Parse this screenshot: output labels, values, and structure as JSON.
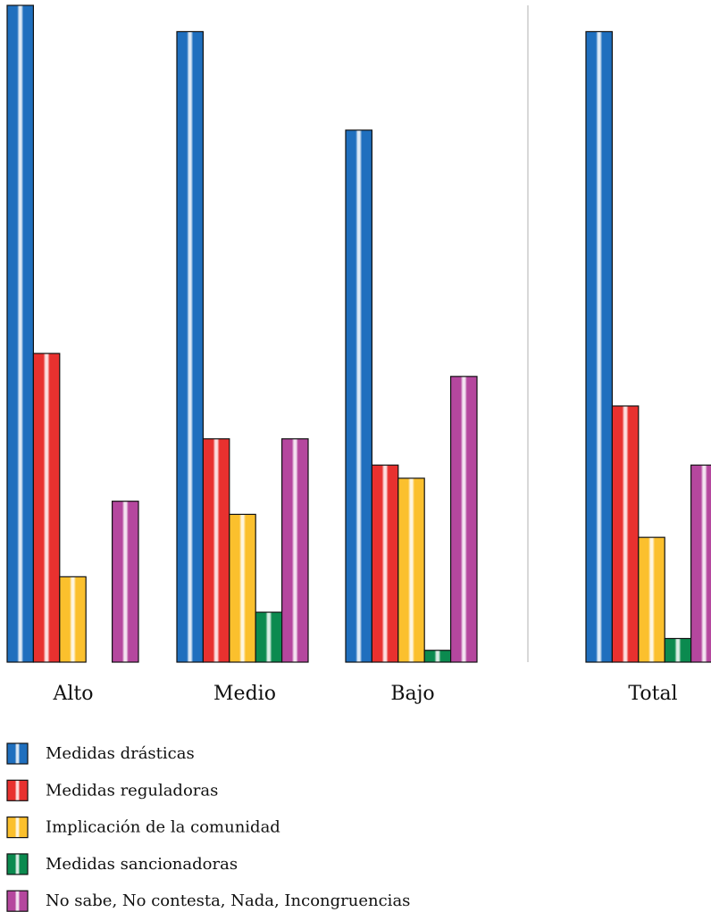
{
  "chart_data": {
    "type": "bar",
    "title": "",
    "xlabel": "",
    "ylabel": "",
    "ylim": [
      0,
      100
    ],
    "categories": [
      "Alto",
      "Medio",
      "Bajo",
      "Total"
    ],
    "series": [
      {
        "name": "Medidas drásticas",
        "color": "#1f6fbe",
        "values": [
          100,
          96,
          81,
          96
        ]
      },
      {
        "name": "Medidas reguladoras",
        "color": "#e8312f",
        "values": [
          47,
          34,
          30,
          39
        ]
      },
      {
        "name": "Implicación de la comunidad",
        "color": "#fbc02d",
        "values": [
          13,
          22.5,
          28,
          19
        ]
      },
      {
        "name": "Medidas sancionadoras",
        "color": "#0b8a4f",
        "values": [
          0,
          7.6,
          1.8,
          3.6
        ]
      },
      {
        "name": "No sabe, No contesta, Nada, Incongruencias",
        "color": "#b5479e",
        "values": [
          24.5,
          34,
          43.5,
          30
        ]
      }
    ],
    "legend_position": "bottom",
    "separator_before_last_group": true,
    "grid": false
  }
}
